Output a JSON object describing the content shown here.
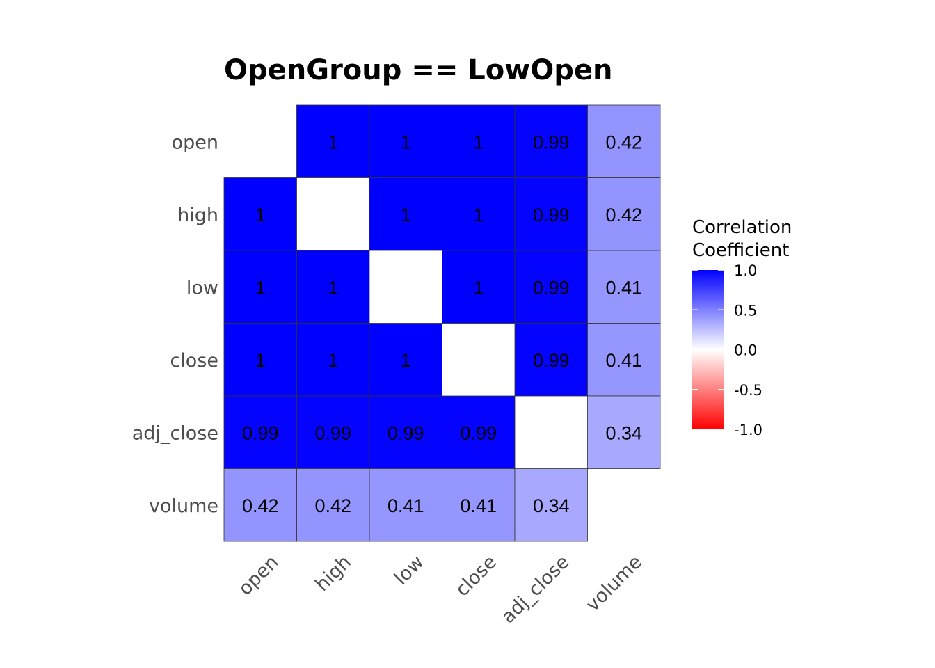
{
  "chart_data": {
    "type": "heatmap",
    "title": "OpenGroup == LowOpen",
    "x_categories": [
      "open",
      "high",
      "low",
      "close",
      "adj_close",
      "volume"
    ],
    "y_categories": [
      "open",
      "high",
      "low",
      "close",
      "adj_close",
      "volume"
    ],
    "values": [
      [
        null,
        1,
        1,
        1,
        0.99,
        0.42
      ],
      [
        1,
        null,
        1,
        1,
        0.99,
        0.42
      ],
      [
        1,
        1,
        null,
        1,
        0.99,
        0.41
      ],
      [
        1,
        1,
        1,
        null,
        0.99,
        0.41
      ],
      [
        0.99,
        0.99,
        0.99,
        0.99,
        null,
        0.34
      ],
      [
        0.42,
        0.42,
        0.41,
        0.41,
        0.34,
        null
      ]
    ],
    "labels": [
      [
        "",
        "1",
        "1",
        "1",
        "0.99",
        "0.42"
      ],
      [
        "1",
        "",
        "1",
        "1",
        "0.99",
        "0.42"
      ],
      [
        "1",
        "1",
        "",
        "1",
        "0.99",
        "0.41"
      ],
      [
        "1",
        "1",
        "1",
        "",
        "0.99",
        "0.41"
      ],
      [
        "0.99",
        "0.99",
        "0.99",
        "0.99",
        "",
        "0.34"
      ],
      [
        "0.42",
        "0.42",
        "0.41",
        "0.41",
        "0.34",
        ""
      ]
    ],
    "legend": {
      "title_lines": [
        "Correlation",
        "Coefficient"
      ],
      "range": [
        -1,
        1
      ],
      "ticks": [
        1.0,
        0.5,
        0.0,
        -0.5,
        -1.0
      ],
      "tick_labels": [
        "1.0",
        "0.5",
        "0.0",
        "-0.5",
        "-1.0"
      ],
      "placement": "right"
    },
    "colors": {
      "high": "#0000ff",
      "mid": "#ffffff",
      "low": "#ff0000",
      "cell_border": "#333333"
    }
  }
}
